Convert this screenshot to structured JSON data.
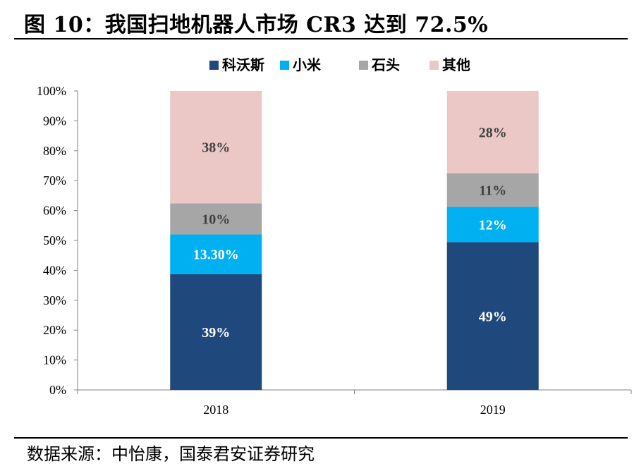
{
  "title": "图 10：我国扫地机器人市场 CR3 达到 72.5%",
  "source": "数据来源：中怡康，国泰君安证券研究",
  "chart_data": {
    "type": "bar",
    "stacked": true,
    "categories": [
      "2018",
      "2019"
    ],
    "ylim": [
      0,
      100
    ],
    "yticks": [
      "0%",
      "10%",
      "20%",
      "30%",
      "40%",
      "50%",
      "60%",
      "70%",
      "80%",
      "90%",
      "100%"
    ],
    "legend_position": "top-center",
    "grid": false,
    "series": [
      {
        "name": "科沃斯",
        "color": "#1F497D",
        "label_color": "#ffffff",
        "values": [
          38.7,
          49.4
        ],
        "labels": [
          "39%",
          "49%"
        ]
      },
      {
        "name": "小米",
        "color": "#00B0F0",
        "label_color": "#ffffff",
        "values": [
          13.3,
          11.8
        ],
        "labels": [
          "13.30%",
          "12%"
        ]
      },
      {
        "name": "石头",
        "color": "#A6A6A6",
        "label_color": "#404040",
        "values": [
          10.4,
          11.3
        ],
        "labels": [
          "10%",
          "11%"
        ]
      },
      {
        "name": "其他",
        "color": "#EBC8C6",
        "label_color": "#404040",
        "values": [
          37.6,
          27.5
        ],
        "labels": [
          "38%",
          "28%"
        ]
      }
    ]
  }
}
